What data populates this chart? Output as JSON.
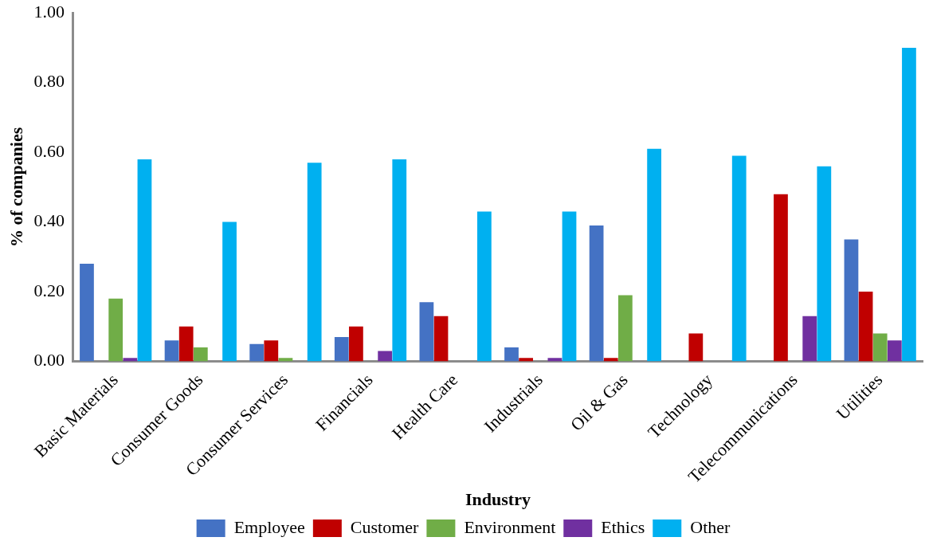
{
  "chart_data": {
    "type": "bar",
    "xlabel": "Industry",
    "ylabel": "% of companies",
    "categories": [
      "Basic Materials",
      "Consumer Goods",
      "Consumer Services",
      "Financials",
      "Health Care",
      "Industrials",
      "Oil & Gas",
      "Technology",
      "Telecommunications",
      "Utilities"
    ],
    "series": [
      {
        "name": "Employee",
        "color": "#4472c4",
        "values": [
          0.28,
          0.06,
          0.05,
          0.07,
          0.17,
          0.04,
          0.39,
          0,
          0,
          0.35
        ]
      },
      {
        "name": "Customer",
        "color": "#c00000",
        "values": [
          0,
          0.1,
          0.06,
          0.1,
          0.13,
          0.01,
          0.01,
          0.08,
          0.48,
          0.2
        ]
      },
      {
        "name": "Environment",
        "color": "#70ad47",
        "values": [
          0.18,
          0.04,
          0.01,
          0,
          0,
          0,
          0.19,
          0,
          0,
          0.08
        ]
      },
      {
        "name": "Ethics",
        "color": "#7030a0",
        "values": [
          0.01,
          0,
          0,
          0.03,
          0,
          0.01,
          0,
          0,
          0.13,
          0.06
        ]
      },
      {
        "name": "Other",
        "color": "#00b0f0",
        "values": [
          0.58,
          0.4,
          0.57,
          0.58,
          0.43,
          0.43,
          0.61,
          0.59,
          0.56,
          0.9
        ]
      }
    ],
    "ylim": [
      0,
      1
    ],
    "yticks": [
      {
        "value": 0,
        "label": "0.00"
      },
      {
        "value": 0.2,
        "label": "0.20"
      },
      {
        "value": 0.4,
        "label": "0.40"
      },
      {
        "value": 0.6,
        "label": "0.60"
      },
      {
        "value": 0.8,
        "label": "0.80"
      },
      {
        "value": 1,
        "label": "1.00"
      }
    ],
    "grid": false,
    "legend": "bottom"
  }
}
